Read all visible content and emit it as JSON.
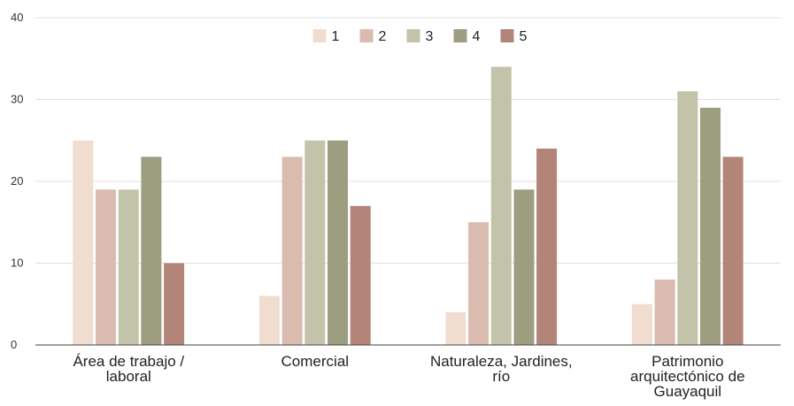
{
  "chart_data": {
    "type": "bar",
    "categories": [
      [
        "Área de trabajo /",
        "laboral"
      ],
      [
        "Comercial"
      ],
      [
        "Naturaleza, Jardines,",
        "río"
      ],
      [
        "Patrimonio",
        "arquitectónico de",
        "Guayaquil"
      ]
    ],
    "series": [
      {
        "name": "1",
        "color": "#f1ddcf",
        "values": [
          25,
          6,
          4,
          5
        ]
      },
      {
        "name": "2",
        "color": "#d9bbb0",
        "values": [
          19,
          23,
          15,
          8
        ]
      },
      {
        "name": "3",
        "color": "#c3c3aa",
        "values": [
          19,
          25,
          34,
          31
        ]
      },
      {
        "name": "4",
        "color": "#9d9d80",
        "values": [
          23,
          25,
          19,
          29
        ]
      },
      {
        "name": "5",
        "color": "#b38579",
        "values": [
          10,
          17,
          24,
          23
        ]
      }
    ],
    "ylim": [
      0,
      40
    ],
    "yticks": [
      0,
      10,
      20,
      30,
      40
    ],
    "grid": true,
    "legend": "top-center",
    "title": "",
    "xlabel": "",
    "ylabel": ""
  }
}
